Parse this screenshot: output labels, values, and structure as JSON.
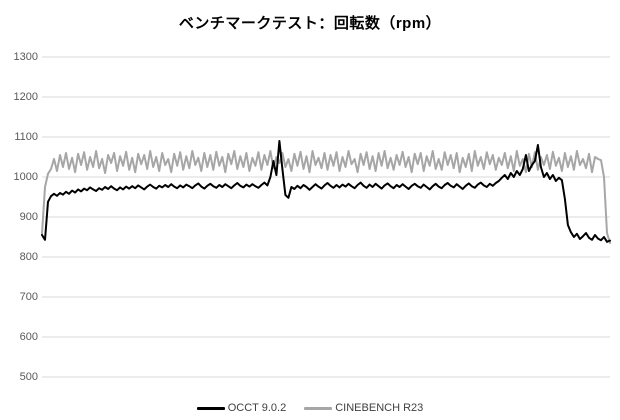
{
  "title": "ベンチマークテスト：回転数（rpm）",
  "colors": {
    "background": "#FFFFFF",
    "gridline": "#D9D9D9",
    "tick_label": "#595959",
    "legend_text": "#404040",
    "occt": "#000000",
    "cinebench": "#A6A6A6"
  },
  "chart_data": {
    "type": "line",
    "title": "ベンチマークテスト：回転数（rpm）",
    "xlabel": "",
    "ylabel": "",
    "x_axis": "time (no tick labels shown)",
    "ylim": [
      500,
      1300
    ],
    "ytick_interval": 100,
    "yticks": [
      "1300",
      "1200",
      "1100",
      "1000",
      "900",
      "800",
      "700",
      "600",
      "500"
    ],
    "grid": "horizontal",
    "legend_position": "bottom-center",
    "series": [
      {
        "name": "OCCT 9.0.2",
        "color": "#000000",
        "stroke_width": 2,
        "values": [
          855,
          843,
          938,
          952,
          958,
          953,
          960,
          956,
          963,
          958,
          966,
          961,
          969,
          964,
          971,
          967,
          974,
          969,
          965,
          972,
          968,
          975,
          970,
          977,
          971,
          967,
          974,
          969,
          976,
          971,
          977,
          972,
          979,
          974,
          969,
          976,
          981,
          975,
          971,
          978,
          974,
          980,
          975,
          982,
          976,
          972,
          979,
          974,
          981,
          977,
          972,
          979,
          984,
          976,
          971,
          978,
          983,
          977,
          973,
          980,
          975,
          982,
          977,
          972,
          979,
          985,
          978,
          974,
          981,
          976,
          982,
          977,
          973,
          980,
          986,
          979,
          1000,
          1040,
          1005,
          1090,
          1020,
          955,
          948,
          975,
          970,
          978,
          972,
          980,
          975,
          968,
          975,
          982,
          976,
          971,
          979,
          985,
          978,
          973,
          980,
          974,
          981,
          976,
          983,
          977,
          972,
          980,
          986,
          978,
          973,
          981,
          975,
          983,
          977,
          971,
          979,
          984,
          977,
          972,
          980,
          975,
          982,
          976,
          970,
          978,
          983,
          977,
          973,
          981,
          975,
          969,
          977,
          983,
          976,
          972,
          980,
          985,
          978,
          974,
          982,
          976,
          970,
          978,
          984,
          977,
          973,
          981,
          986,
          979,
          975,
          983,
          978,
          985,
          990,
          998,
          1005,
          995,
          1010,
          1000,
          1015,
          1005,
          1020,
          1055,
          1015,
          1030,
          1040,
          1080,
          1025,
          1000,
          1010,
          995,
          1005,
          990,
          998,
          992,
          945,
          880,
          862,
          850,
          858,
          845,
          852,
          860,
          848,
          843,
          855,
          846,
          842,
          850,
          838,
          841
        ]
      },
      {
        "name": "CINEBENCH R23",
        "color": "#A6A6A6",
        "stroke_width": 2,
        "values": [
          858,
          975,
          1008,
          1020,
          1045,
          1015,
          1055,
          1025,
          1060,
          1020,
          1048,
          1012,
          1058,
          1030,
          1062,
          1018,
          1050,
          1025,
          1065,
          1022,
          1045,
          1010,
          1055,
          1035,
          1060,
          1015,
          1052,
          1028,
          1063,
          1018,
          1048,
          1012,
          1058,
          1032,
          1055,
          1020,
          1065,
          1025,
          1050,
          1015,
          1060,
          1030,
          1045,
          1012,
          1058,
          1028,
          1062,
          1018,
          1052,
          1022,
          1065,
          1030,
          1048,
          1015,
          1060,
          1025,
          1055,
          1018,
          1063,
          1028,
          1050,
          1012,
          1058,
          1032,
          1065,
          1020,
          1052,
          1025,
          1060,
          1015,
          1048,
          1028,
          1062,
          1018,
          1055,
          1030,
          1065,
          1022,
          1050,
          1035,
          1060,
          1025,
          1045,
          1015,
          1058,
          1028,
          1063,
          1020,
          1052,
          1012,
          1065,
          1030,
          1048,
          1022,
          1060,
          1018,
          1055,
          1028,
          1062,
          1015,
          1050,
          1025,
          1065,
          1032,
          1045,
          1012,
          1058,
          1030,
          1062,
          1020,
          1052,
          1015,
          1060,
          1028,
          1065,
          1022,
          1048,
          1018,
          1055,
          1030,
          1063,
          1025,
          1050,
          1012,
          1058,
          1032,
          1060,
          1015,
          1052,
          1028,
          1065,
          1020,
          1045,
          1018,
          1062,
          1030,
          1055,
          1022,
          1060,
          1012,
          1048,
          1025,
          1058,
          1015,
          1065,
          1028,
          1050,
          1020,
          1062,
          1032,
          1055,
          1018,
          1048,
          1030,
          1060,
          1022,
          1052,
          1015,
          1065,
          1028,
          1045,
          1012,
          1058,
          1025,
          1062,
          1018,
          1050,
          1030,
          1055,
          1020,
          1063,
          1028,
          1048,
          1015,
          1060,
          1025,
          1052,
          1018,
          1065,
          1030,
          1045,
          1022,
          1058,
          1012,
          1050,
          1045,
          1042,
          1000,
          860,
          835
        ]
      }
    ]
  },
  "legend": {
    "items": [
      {
        "label": "OCCT 9.0.2"
      },
      {
        "label": "CINEBENCH R23"
      }
    ]
  }
}
